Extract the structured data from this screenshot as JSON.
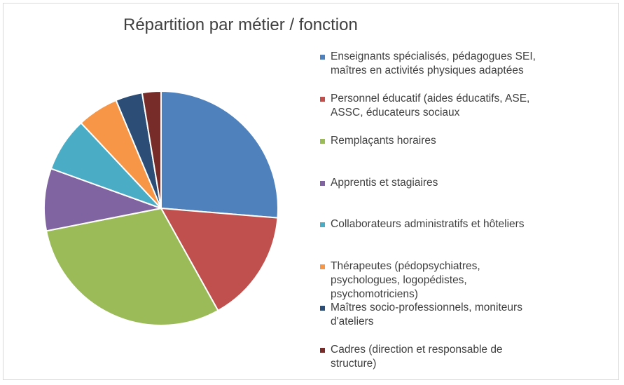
{
  "chart_data": {
    "type": "pie",
    "title": "Répartition par métier / fonction",
    "legend_position": "right",
    "series": [
      {
        "name": "Enseignants spécialisés, pédagogues SEI, maîtres en activités physiques adaptées",
        "value": 26.3,
        "color": "#4f81bd"
      },
      {
        "name": "Personnel éducatif (aides éducatifs, ASE, ASSC, éducateurs sociaux",
        "value": 15.6,
        "color": "#c0504d"
      },
      {
        "name": "Remplaçants horaires",
        "value": 30.0,
        "color": "#9bbb59"
      },
      {
        "name": "Apprentis et stagiaires",
        "value": 8.6,
        "color": "#8064a2"
      },
      {
        "name": "Collaborateurs administratifs et hôteliers",
        "value": 7.5,
        "color": "#4bacc6"
      },
      {
        "name": "Thérapeutes (pédopsychiatres, psychologues, logopédistes, psychomotriciens)",
        "value": 5.7,
        "color": "#f79646"
      },
      {
        "name": "Maîtres socio-professionnels, moniteurs d'ateliers",
        "value": 3.7,
        "color": "#2c4d75"
      },
      {
        "name": "Cadres (direction et responsable de structure)",
        "value": 2.6,
        "color": "#772c2a"
      }
    ]
  }
}
